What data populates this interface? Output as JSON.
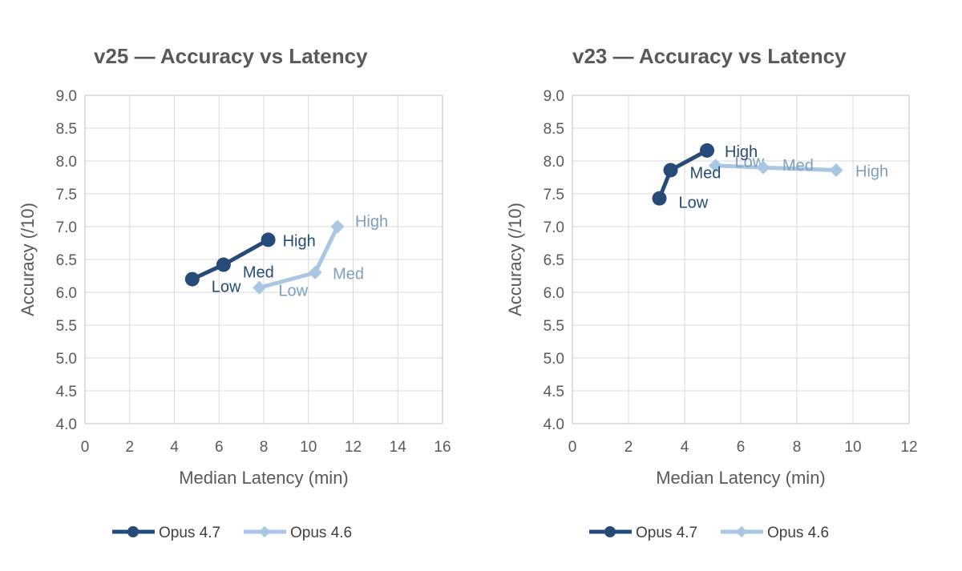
{
  "chart_data": [
    {
      "type": "scatter",
      "title": "v25 — Accuracy vs Latency",
      "xlabel": "Median Latency (min)",
      "ylabel": "Accuracy (/10)",
      "xlim": [
        0,
        16
      ],
      "ylim": [
        4.0,
        9.0
      ],
      "x_ticks": [
        "0",
        "2",
        "4",
        "6",
        "8",
        "10",
        "12",
        "14",
        "16"
      ],
      "y_ticks": [
        "4.0",
        "4.5",
        "5.0",
        "5.5",
        "6.0",
        "6.5",
        "7.0",
        "7.5",
        "8.0",
        "8.5",
        "9.0"
      ],
      "grid": true,
      "legend_position": "bottom",
      "series": [
        {
          "name": "Opus 4.7",
          "color": "#264b78",
          "marker": "circle",
          "points": [
            {
              "x": 4.8,
              "y": 6.2,
              "label": "Low"
            },
            {
              "x": 6.2,
              "y": 6.42,
              "label": "Med"
            },
            {
              "x": 8.2,
              "y": 6.8,
              "label": "High"
            }
          ]
        },
        {
          "name": "Opus 4.6",
          "color": "#a9c6e2",
          "label_color": "#7f9fbf",
          "marker": "diamond",
          "points": [
            {
              "x": 7.8,
              "y": 6.07,
              "label": "Low"
            },
            {
              "x": 10.3,
              "y": 6.3,
              "label": "Med"
            },
            {
              "x": 11.3,
              "y": 7.0,
              "label": "High"
            }
          ]
        }
      ]
    },
    {
      "type": "scatter",
      "title": "v23 — Accuracy vs Latency",
      "xlabel": "Median Latency (min)",
      "ylabel": "Accuracy (/10)",
      "xlim": [
        0,
        12
      ],
      "ylim": [
        4.0,
        9.0
      ],
      "x_ticks": [
        "0",
        "2",
        "4",
        "6",
        "8",
        "10",
        "12"
      ],
      "y_ticks": [
        "4.0",
        "4.5",
        "5.0",
        "5.5",
        "6.0",
        "6.5",
        "7.0",
        "7.5",
        "8.0",
        "8.5",
        "9.0"
      ],
      "grid": true,
      "legend_position": "bottom",
      "series": [
        {
          "name": "Opus 4.7",
          "color": "#264b78",
          "marker": "circle",
          "points": [
            {
              "x": 3.1,
              "y": 7.43,
              "label": "Low"
            },
            {
              "x": 3.5,
              "y": 7.86,
              "label": "Med"
            },
            {
              "x": 4.8,
              "y": 8.16,
              "label": "High"
            }
          ]
        },
        {
          "name": "Opus 4.6",
          "color": "#a9c6e2",
          "label_color": "#7f9fbf",
          "marker": "diamond",
          "points": [
            {
              "x": 5.1,
              "y": 7.93,
              "label": "Low"
            },
            {
              "x": 6.8,
              "y": 7.9,
              "label": "Med"
            },
            {
              "x": 9.4,
              "y": 7.86,
              "label": "High"
            }
          ]
        }
      ]
    }
  ]
}
